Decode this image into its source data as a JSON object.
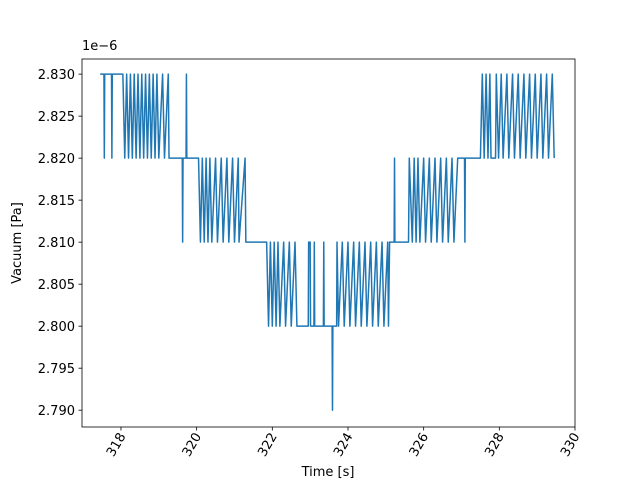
{
  "chart_data": {
    "type": "line",
    "x_label": "Time [s]",
    "y_label": "Vacuum [Pa]",
    "y_offset_label": "1e−6",
    "color": "#1f77b4",
    "xlim": [
      316.97,
      330.0
    ],
    "ylim": [
      2.788,
      2.8318
    ],
    "xticks": [
      318,
      320,
      322,
      324,
      326,
      328,
      330
    ],
    "yticks": [
      {
        "value": 2.79,
        "label": "2.790"
      },
      {
        "value": 2.795,
        "label": "2.795"
      },
      {
        "value": 2.8,
        "label": "2.800"
      },
      {
        "value": 2.805,
        "label": "2.805"
      },
      {
        "value": 2.81,
        "label": "2.810"
      },
      {
        "value": 2.815,
        "label": "2.815"
      },
      {
        "value": 2.82,
        "label": "2.820"
      },
      {
        "value": 2.825,
        "label": "2.825"
      },
      {
        "value": 2.83,
        "label": "2.830"
      }
    ],
    "x": [
      317.45,
      317.55,
      317.56,
      317.57,
      317.75,
      317.76,
      317.77,
      318.05,
      318.1,
      318.15,
      318.2,
      318.25,
      318.3,
      318.35,
      318.4,
      318.45,
      318.5,
      318.55,
      318.6,
      318.65,
      318.7,
      318.75,
      318.8,
      318.85,
      318.9,
      318.95,
      319.0,
      319.1,
      319.15,
      319.25,
      319.27,
      319.62,
      319.63,
      319.64,
      319.72,
      319.73,
      319.74,
      320.05,
      320.1,
      320.15,
      320.2,
      320.25,
      320.3,
      320.35,
      320.4,
      320.5,
      320.55,
      320.65,
      320.7,
      320.8,
      320.85,
      320.95,
      321.0,
      321.1,
      321.12,
      321.28,
      321.3,
      321.85,
      321.9,
      321.95,
      322.0,
      322.05,
      322.1,
      322.15,
      322.2,
      322.3,
      322.35,
      322.45,
      322.5,
      322.6,
      322.65,
      322.95,
      322.96,
      323.0,
      323.01,
      323.1,
      323.11,
      323.12,
      323.35,
      323.36,
      323.37,
      323.58,
      323.59,
      323.6,
      323.7,
      323.71,
      323.75,
      323.85,
      323.9,
      324.0,
      324.05,
      324.15,
      324.2,
      324.3,
      324.35,
      324.45,
      324.5,
      324.6,
      324.65,
      324.75,
      324.8,
      324.9,
      324.95,
      325.05,
      325.07,
      325.1,
      325.22,
      325.23,
      325.24,
      325.6,
      325.62,
      325.7,
      325.75,
      325.8,
      325.85,
      325.9,
      326.0,
      326.05,
      326.15,
      326.2,
      326.3,
      326.35,
      326.45,
      326.5,
      326.6,
      326.65,
      326.75,
      326.8,
      326.9,
      327.08,
      327.09,
      327.1,
      327.5,
      327.55,
      327.6,
      327.65,
      327.7,
      327.75,
      327.78,
      327.9,
      327.92,
      327.98,
      328.05,
      328.1,
      328.2,
      328.25,
      328.35,
      328.4,
      328.5,
      328.55,
      328.65,
      328.7,
      328.8,
      328.85,
      328.95,
      329.0,
      329.1,
      329.15,
      329.25,
      329.3,
      329.4,
      329.45
    ],
    "values": [
      2.83,
      2.83,
      2.82,
      2.83,
      2.83,
      2.82,
      2.83,
      2.83,
      2.82,
      2.83,
      2.82,
      2.83,
      2.82,
      2.83,
      2.82,
      2.83,
      2.82,
      2.83,
      2.82,
      2.83,
      2.82,
      2.83,
      2.82,
      2.83,
      2.82,
      2.83,
      2.82,
      2.83,
      2.82,
      2.83,
      2.82,
      2.82,
      2.81,
      2.82,
      2.82,
      2.83,
      2.82,
      2.82,
      2.81,
      2.82,
      2.81,
      2.82,
      2.81,
      2.82,
      2.81,
      2.82,
      2.81,
      2.82,
      2.81,
      2.82,
      2.81,
      2.82,
      2.81,
      2.82,
      2.81,
      2.82,
      2.81,
      2.81,
      2.8,
      2.81,
      2.8,
      2.81,
      2.8,
      2.81,
      2.8,
      2.81,
      2.8,
      2.81,
      2.8,
      2.81,
      2.8,
      2.8,
      2.81,
      2.81,
      2.8,
      2.8,
      2.81,
      2.8,
      2.8,
      2.81,
      2.8,
      2.8,
      2.79,
      2.8,
      2.8,
      2.81,
      2.8,
      2.81,
      2.8,
      2.81,
      2.8,
      2.81,
      2.8,
      2.81,
      2.8,
      2.81,
      2.8,
      2.81,
      2.8,
      2.81,
      2.8,
      2.81,
      2.8,
      2.81,
      2.8,
      2.81,
      2.81,
      2.82,
      2.81,
      2.81,
      2.82,
      2.81,
      2.82,
      2.81,
      2.82,
      2.81,
      2.82,
      2.81,
      2.82,
      2.81,
      2.82,
      2.81,
      2.82,
      2.81,
      2.82,
      2.81,
      2.82,
      2.81,
      2.82,
      2.82,
      2.81,
      2.82,
      2.82,
      2.83,
      2.82,
      2.83,
      2.82,
      2.83,
      2.82,
      2.82,
      2.83,
      2.82,
      2.83,
      2.82,
      2.83,
      2.82,
      2.83,
      2.82,
      2.83,
      2.82,
      2.83,
      2.82,
      2.83,
      2.82,
      2.83,
      2.82,
      2.83,
      2.82,
      2.83,
      2.82,
      2.83,
      2.82
    ]
  }
}
